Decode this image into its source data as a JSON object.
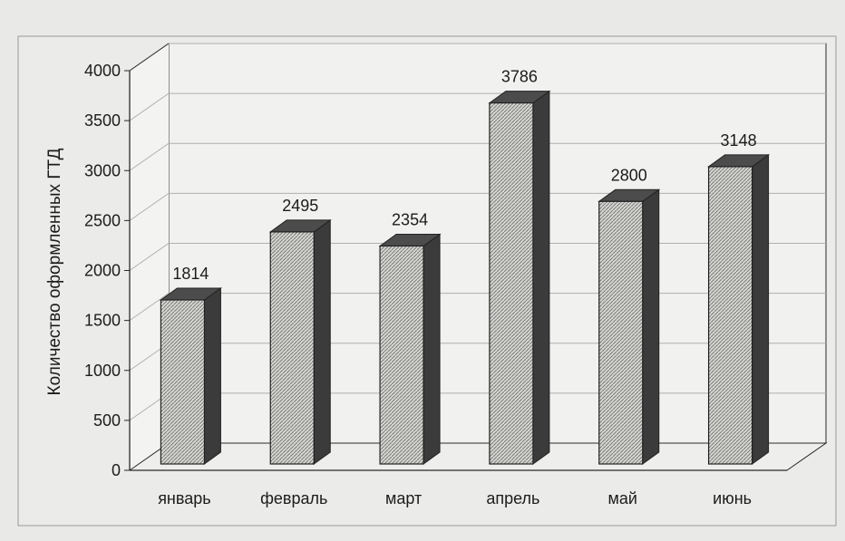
{
  "chart_data": {
    "type": "bar",
    "title": "",
    "xlabel": "",
    "ylabel": "Количество оформленных ГТД",
    "categories": [
      "январь",
      "февраль",
      "март",
      "апрель",
      "май",
      "июнь"
    ],
    "values": [
      1814,
      2495,
      2354,
      3786,
      2800,
      3148
    ],
    "ylim": [
      0,
      4000
    ],
    "yticks": [
      0,
      500,
      1000,
      1500,
      2000,
      2500,
      3000,
      3500,
      4000
    ],
    "grid": true,
    "legend": "none",
    "style": "3d"
  },
  "colors": {
    "background": "#e9e9e7",
    "bar_front": "#d6d6d3",
    "bar_hatch": "#7a7a78",
    "bar_side": "#3b3b3b",
    "bar_top": "#4c4c4c",
    "axis": "#2a2a2a",
    "grid": "#b0b0ad"
  }
}
